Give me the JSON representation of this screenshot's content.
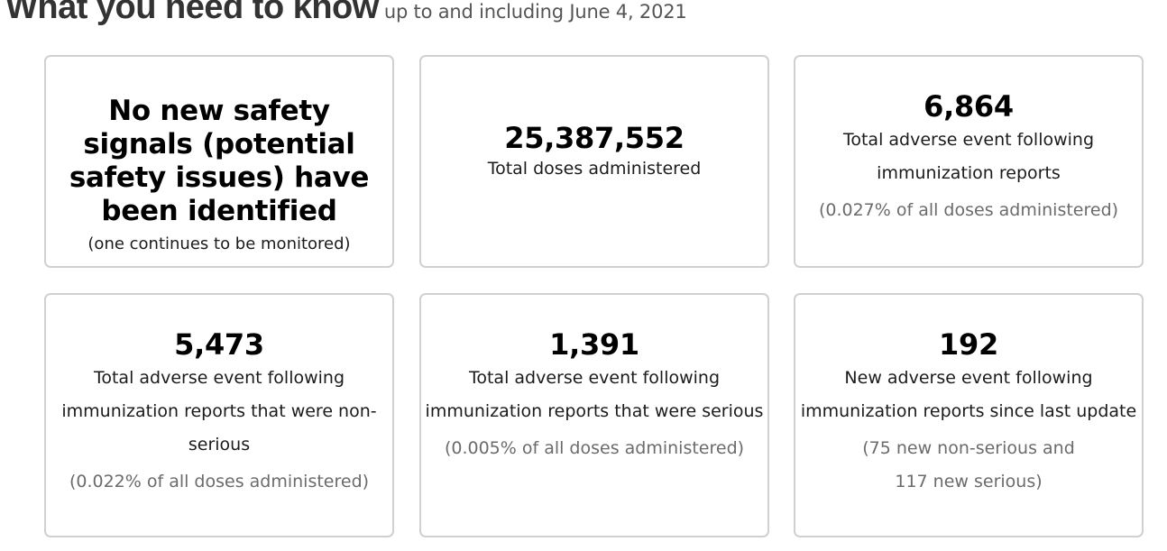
{
  "header": {
    "title": "What you need to know",
    "subtitle": "up to and including June 4, 2021"
  },
  "cards": [
    {
      "statement": "No new safety signals (potential safety issues) have been identified",
      "note": "(one continues to be monitored)"
    },
    {
      "figure": "25,387,552",
      "label": "Total doses administered"
    },
    {
      "figure": "6,864",
      "label": "Total adverse event following immunization reports",
      "note": "(0.027% of all doses administered)"
    },
    {
      "figure": "5,473",
      "label": "Total adverse event following immunization reports that were non-serious",
      "note": "(0.022% of all doses administered)"
    },
    {
      "figure": "1,391",
      "label": "Total adverse event following immunization reports that were serious",
      "note": "(0.005% of all doses administered)"
    },
    {
      "figure": "192",
      "label": "New adverse event following immunization reports since last update",
      "note": "(75 new non-serious and 117 new serious)"
    }
  ]
}
